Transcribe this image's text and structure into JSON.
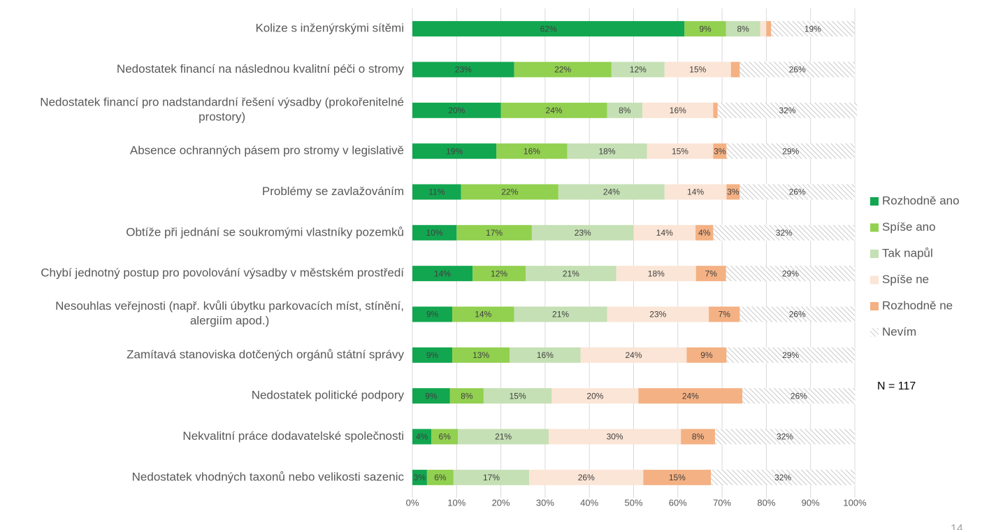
{
  "chart_data": {
    "type": "stacked-bar-horizontal",
    "categories": [
      "Kolize s inženýrskými sítěmi",
      "Nedostatek financí na následnou kvalitní péči o stromy",
      "Nedostatek financí pro nadstandardní řešení výsadby (prokořenitelné prostory)",
      "Absence ochranných pásem pro stromy v legislativě",
      "Problémy se zavlažováním",
      "Obtíže při jednání se soukromými vlastníky pozemků",
      "Chybí jednotný postup pro povolování výsadby v městském prostředí",
      "Nesouhlas veřejnosti (např. kvůli úbytku parkovacích míst, stínění, alergiím apod.)",
      "Zamítavá stanoviska dotčených orgánů státní správy",
      "Nedostatek politické podpory",
      "Nekvalitní práce dodavatelské společnosti",
      "Nedostatek vhodných taxonů nebo velikosti sazenic"
    ],
    "series": [
      {
        "name": "Rozhodně ano",
        "color": "#12a650",
        "values": [
          61.5,
          23,
          20,
          19,
          11,
          10,
          13.6,
          9,
          9,
          8.5,
          4.3,
          3.3
        ],
        "value_labels": [
          "62%",
          "23%",
          "20%",
          "19%",
          "11%",
          "10%",
          "14%",
          "9%",
          "9%",
          "9%",
          "4%",
          "3%"
        ]
      },
      {
        "name": "Spíše ano",
        "color": "#92d050",
        "values": [
          9.4,
          22,
          24,
          16,
          22,
          17,
          12,
          14,
          13,
          7.6,
          6,
          6
        ],
        "value_labels": [
          "9%",
          "22%",
          "24%",
          "16%",
          "22%",
          "17%",
          "12%",
          "14%",
          "13%",
          "8%",
          "6%",
          "6%"
        ]
      },
      {
        "name": "Tak napůl",
        "color": "#c5e0b4",
        "values": [
          7.7,
          12,
          8,
          18,
          24,
          23,
          20.5,
          21,
          16,
          15.4,
          20.5,
          17.1
        ],
        "value_labels": [
          "8%",
          "12%",
          "8%",
          "18%",
          "24%",
          "23%",
          "21%",
          "21%",
          "16%",
          "15%",
          "21%",
          "17%"
        ]
      },
      {
        "name": "Spíše ne",
        "color": "#fbe5d6",
        "values": [
          1.4,
          15,
          16,
          15,
          14,
          14,
          18,
          23,
          24,
          19.6,
          29.9,
          25.8
        ],
        "value_labels": [
          null,
          "15%",
          "16%",
          "15%",
          "14%",
          "14%",
          "18%",
          "23%",
          "24%",
          "20%",
          "30%",
          "26%"
        ]
      },
      {
        "name": "Rozhodně ne",
        "color": "#f4b183",
        "values": [
          1.1,
          2,
          1,
          3,
          3,
          4,
          6.8,
          7,
          9,
          23.5,
          7.7,
          15.3
        ],
        "value_labels": [
          null,
          null,
          null,
          "3%",
          "3%",
          "4%",
          "7%",
          "7%",
          "9%",
          "24%",
          "8%",
          "15%"
        ]
      },
      {
        "name": "Nevím",
        "color": "#c8c8c8",
        "pattern": "hatch",
        "values": [
          18.8,
          26,
          31.5,
          29,
          26,
          32,
          29.1,
          26,
          29,
          25.5,
          31.6,
          32.5
        ],
        "value_labels": [
          "19%",
          "26%",
          "32%",
          "29%",
          "26%",
          "32%",
          "29%",
          "26%",
          "29%",
          "26%",
          "32%",
          "32%"
        ]
      }
    ],
    "xlim": [
      0,
      100
    ],
    "xticks": [
      {
        "value": 0,
        "label": "0%"
      },
      {
        "value": 10,
        "label": "10%"
      },
      {
        "value": 20,
        "label": "20%"
      },
      {
        "value": 30,
        "label": "30%"
      },
      {
        "value": 40,
        "label": "40%"
      },
      {
        "value": 50,
        "label": "50%"
      },
      {
        "value": 60,
        "label": "60%"
      },
      {
        "value": 70,
        "label": "70%"
      },
      {
        "value": 80,
        "label": "80%"
      },
      {
        "value": 90,
        "label": "90%"
      },
      {
        "value": 100,
        "label": "100%"
      }
    ],
    "grid": true,
    "legend": "right",
    "annotation": "N = 117",
    "page_number": "14"
  }
}
